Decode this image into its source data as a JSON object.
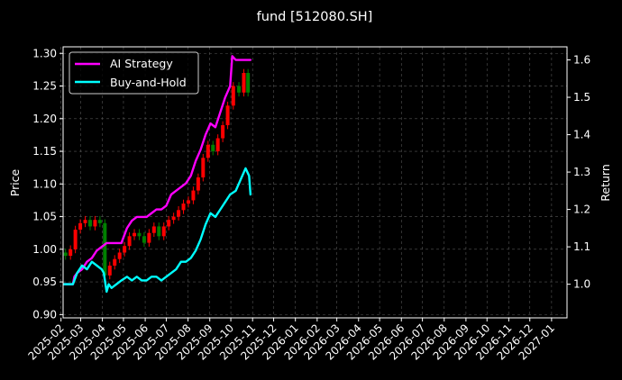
{
  "chart_data": {
    "type": "line",
    "title": "fund [512080.SH]",
    "ylabel_left": "Price",
    "ylabel_right": "Return",
    "ylim_left": [
      0.895,
      1.31
    ],
    "ylim_right": [
      0.91,
      1.635
    ],
    "xlim": [
      "2025-02-04",
      "2027-01-23"
    ],
    "yticks_left": [
      "0.90",
      "0.95",
      "1.00",
      "1.05",
      "1.10",
      "1.15",
      "1.20",
      "1.25",
      "1.30"
    ],
    "yticks_right": [
      "1.0",
      "1.1",
      "1.2",
      "1.3",
      "1.4",
      "1.5",
      "1.6"
    ],
    "xticks": [
      "2025-02",
      "2025-03",
      "2025-04",
      "2025-05",
      "2025-06",
      "2025-07",
      "2025-08",
      "2025-09",
      "2025-10",
      "2025-11",
      "2025-12",
      "2026-01",
      "2026-02",
      "2026-03",
      "2026-04",
      "2026-05",
      "2026-06",
      "2026-07",
      "2026-08",
      "2026-09",
      "2026-10",
      "2026-11",
      "2026-12",
      "2027-01"
    ],
    "grid": true,
    "legend_position": "top-left",
    "series": [
      {
        "name": "AI Strategy",
        "axis": "right",
        "color": "#ff00ff",
        "points": [
          [
            "2025-02-05",
            1.0
          ],
          [
            "2025-02-12",
            1.0
          ],
          [
            "2025-02-18",
            1.0
          ],
          [
            "2025-02-20",
            1.02
          ],
          [
            "2025-02-24",
            1.03
          ],
          [
            "2025-03-03",
            1.04
          ],
          [
            "2025-03-10",
            1.06
          ],
          [
            "2025-03-17",
            1.07
          ],
          [
            "2025-03-24",
            1.09
          ],
          [
            "2025-03-31",
            1.1
          ],
          [
            "2025-04-07",
            1.11
          ],
          [
            "2025-04-14",
            1.11
          ],
          [
            "2025-04-21",
            1.11
          ],
          [
            "2025-04-28",
            1.11
          ],
          [
            "2025-05-06",
            1.15
          ],
          [
            "2025-05-13",
            1.17
          ],
          [
            "2025-05-20",
            1.18
          ],
          [
            "2025-05-27",
            1.18
          ],
          [
            "2025-06-03",
            1.18
          ],
          [
            "2025-06-10",
            1.19
          ],
          [
            "2025-06-17",
            1.2
          ],
          [
            "2025-06-24",
            1.2
          ],
          [
            "2025-07-01",
            1.21
          ],
          [
            "2025-07-08",
            1.24
          ],
          [
            "2025-07-15",
            1.25
          ],
          [
            "2025-07-22",
            1.26
          ],
          [
            "2025-07-29",
            1.27
          ],
          [
            "2025-08-05",
            1.29
          ],
          [
            "2025-08-12",
            1.33
          ],
          [
            "2025-08-19",
            1.36
          ],
          [
            "2025-08-26",
            1.4
          ],
          [
            "2025-09-02",
            1.43
          ],
          [
            "2025-09-09",
            1.42
          ],
          [
            "2025-09-16",
            1.46
          ],
          [
            "2025-09-23",
            1.5
          ],
          [
            "2025-09-30",
            1.53
          ],
          [
            "2025-10-03",
            1.61
          ],
          [
            "2025-10-08",
            1.6
          ],
          [
            "2025-10-15",
            1.6
          ],
          [
            "2025-10-22",
            1.6
          ],
          [
            "2025-10-29",
            1.6
          ]
        ]
      },
      {
        "name": "Buy-and-Hold",
        "axis": "right",
        "color": "#00ffff",
        "points": [
          [
            "2025-02-05",
            1.0
          ],
          [
            "2025-02-12",
            1.0
          ],
          [
            "2025-02-18",
            1.0
          ],
          [
            "2025-02-24",
            1.03
          ],
          [
            "2025-03-03",
            1.05
          ],
          [
            "2025-03-10",
            1.04
          ],
          [
            "2025-03-17",
            1.06
          ],
          [
            "2025-03-24",
            1.05
          ],
          [
            "2025-03-31",
            1.04
          ],
          [
            "2025-04-03",
            1.03
          ],
          [
            "2025-04-07",
            0.98
          ],
          [
            "2025-04-10",
            1.0
          ],
          [
            "2025-04-14",
            0.99
          ],
          [
            "2025-04-21",
            1.0
          ],
          [
            "2025-04-28",
            1.01
          ],
          [
            "2025-05-06",
            1.02
          ],
          [
            "2025-05-13",
            1.01
          ],
          [
            "2025-05-20",
            1.02
          ],
          [
            "2025-05-27",
            1.01
          ],
          [
            "2025-06-03",
            1.01
          ],
          [
            "2025-06-10",
            1.02
          ],
          [
            "2025-06-17",
            1.02
          ],
          [
            "2025-06-24",
            1.01
          ],
          [
            "2025-07-01",
            1.02
          ],
          [
            "2025-07-08",
            1.03
          ],
          [
            "2025-07-15",
            1.04
          ],
          [
            "2025-07-22",
            1.06
          ],
          [
            "2025-07-29",
            1.06
          ],
          [
            "2025-08-05",
            1.07
          ],
          [
            "2025-08-12",
            1.09
          ],
          [
            "2025-08-19",
            1.12
          ],
          [
            "2025-08-26",
            1.16
          ],
          [
            "2025-09-02",
            1.19
          ],
          [
            "2025-09-09",
            1.18
          ],
          [
            "2025-09-16",
            1.2
          ],
          [
            "2025-09-23",
            1.22
          ],
          [
            "2025-09-30",
            1.24
          ],
          [
            "2025-10-08",
            1.25
          ],
          [
            "2025-10-15",
            1.28
          ],
          [
            "2025-10-22",
            1.31
          ],
          [
            "2025-10-27",
            1.29
          ],
          [
            "2025-10-29",
            1.24
          ]
        ]
      }
    ],
    "price_candles": {
      "axis": "left",
      "up_color": "#ff0000",
      "down_color": "#008000",
      "close": [
        [
          "2025-02-04",
          0.995
        ],
        [
          "2025-02-11",
          0.99
        ],
        [
          "2025-02-18",
          1.0
        ],
        [
          "2025-02-25",
          1.03
        ],
        [
          "2025-03-04",
          1.04
        ],
        [
          "2025-03-11",
          1.045
        ],
        [
          "2025-03-18",
          1.035
        ],
        [
          "2025-03-25",
          1.045
        ],
        [
          "2025-04-01",
          1.04
        ],
        [
          "2025-04-08",
          0.96
        ],
        [
          "2025-04-15",
          0.975
        ],
        [
          "2025-04-22",
          0.985
        ],
        [
          "2025-04-29",
          0.995
        ],
        [
          "2025-05-06",
          1.005
        ],
        [
          "2025-05-13",
          1.02
        ],
        [
          "2025-05-20",
          1.025
        ],
        [
          "2025-05-27",
          1.02
        ],
        [
          "2025-06-03",
          1.01
        ],
        [
          "2025-06-10",
          1.025
        ],
        [
          "2025-06-17",
          1.035
        ],
        [
          "2025-06-24",
          1.02
        ],
        [
          "2025-07-01",
          1.035
        ],
        [
          "2025-07-08",
          1.045
        ],
        [
          "2025-07-15",
          1.05
        ],
        [
          "2025-07-22",
          1.06
        ],
        [
          "2025-07-29",
          1.07
        ],
        [
          "2025-08-05",
          1.075
        ],
        [
          "2025-08-12",
          1.09
        ],
        [
          "2025-08-19",
          1.11
        ],
        [
          "2025-08-26",
          1.14
        ],
        [
          "2025-09-02",
          1.16
        ],
        [
          "2025-09-09",
          1.15
        ],
        [
          "2025-09-16",
          1.17
        ],
        [
          "2025-09-23",
          1.19
        ],
        [
          "2025-09-30",
          1.22
        ],
        [
          "2025-10-09",
          1.25
        ],
        [
          "2025-10-16",
          1.24
        ],
        [
          "2025-10-23",
          1.27
        ],
        [
          "2025-10-28",
          1.24
        ]
      ]
    }
  }
}
